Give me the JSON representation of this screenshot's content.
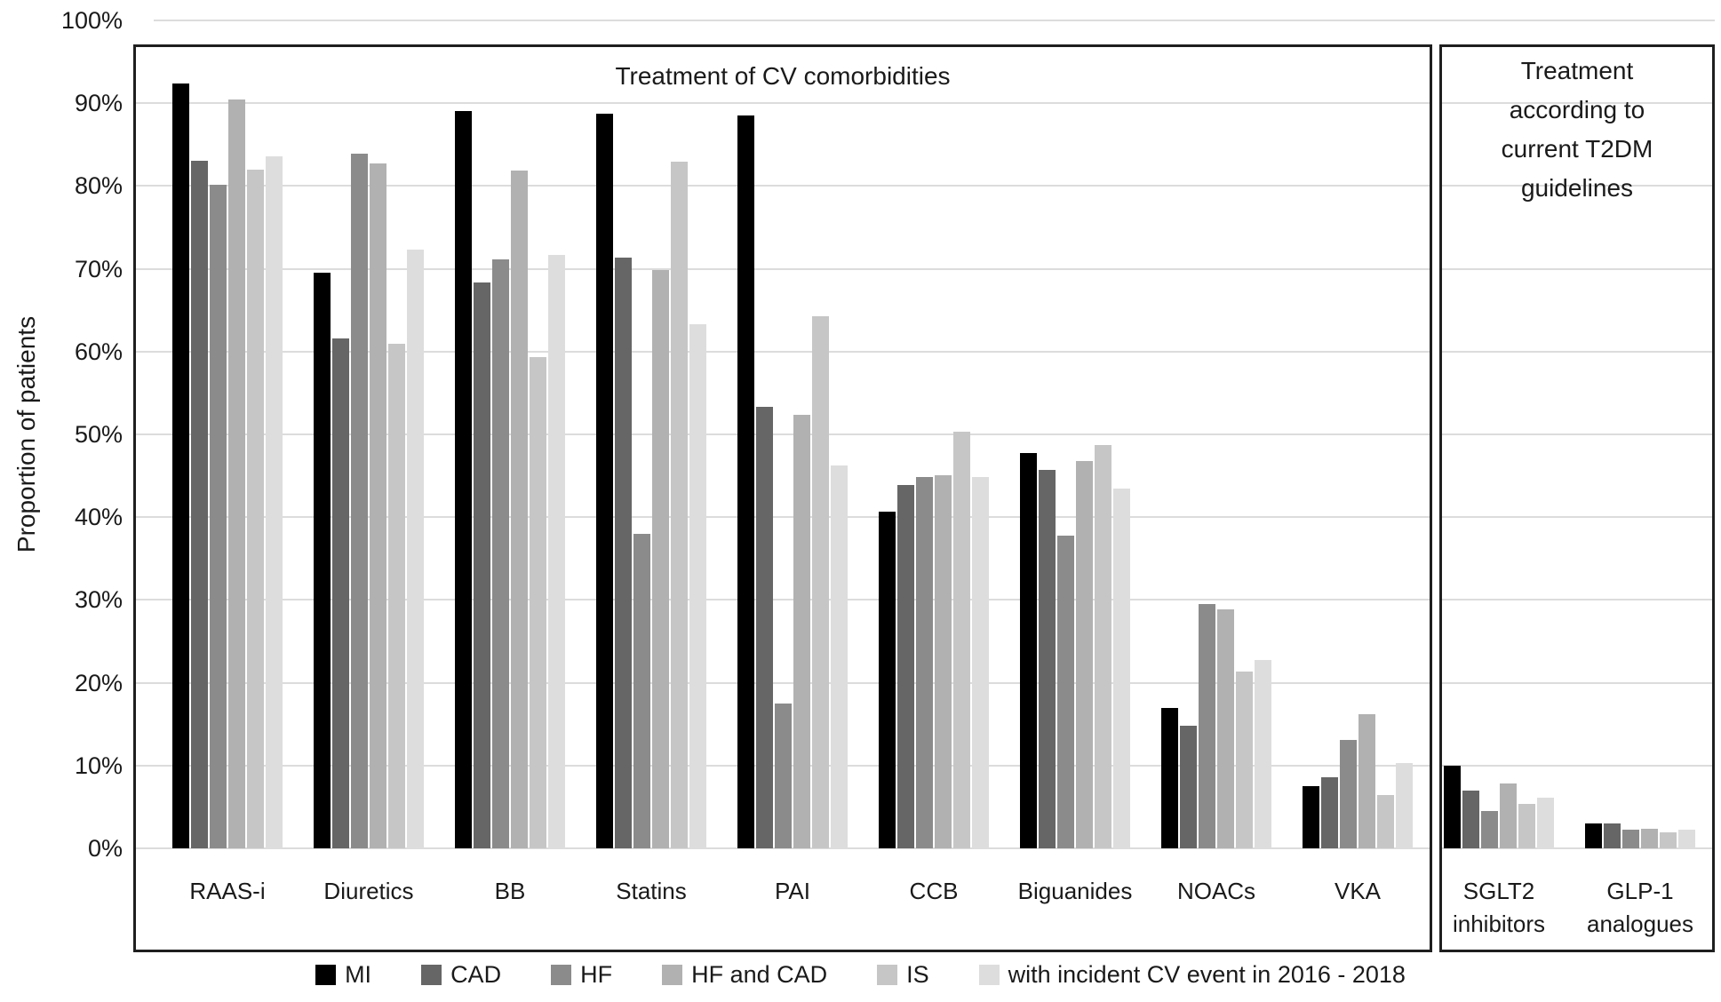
{
  "y_axis": {
    "label": "Proportion of patients",
    "tick_suffix": "%",
    "ticks": [
      100,
      90,
      80,
      70,
      60,
      50,
      40,
      30,
      20,
      10,
      0
    ]
  },
  "main_panel": {
    "title": "Treatment of CV comorbidities"
  },
  "guidelines_panel": {
    "title": "Treatment\naccording to\ncurrent T2DM\nguidelines"
  },
  "chart_data": {
    "type": "bar",
    "title": "Treatment of CV comorbidities",
    "xlabel": "",
    "ylabel": "Proportion of patients",
    "ylim": [
      0,
      100
    ],
    "grid": true,
    "legend_position": "bottom",
    "categories": [
      "RAAS-i",
      "Diuretics",
      "BB",
      "Statins",
      "PAI",
      "CCB",
      "Biguanides",
      "NOACs",
      "VKA",
      "SGLT2 inhibitors",
      "GLP-1 analogues"
    ],
    "category_label_lines": [
      [
        "RAAS-i"
      ],
      [
        "Diuretics"
      ],
      [
        "BB"
      ],
      [
        "Statins"
      ],
      [
        "PAI"
      ],
      [
        "CCB"
      ],
      [
        "Biguanides"
      ],
      [
        "NOACs"
      ],
      [
        "VKA"
      ],
      [
        "SGLT2",
        "inhibitors"
      ],
      [
        "GLP-1",
        "analogues"
      ]
    ],
    "category_panels": [
      "main",
      "main",
      "main",
      "main",
      "main",
      "main",
      "main",
      "main",
      "main",
      "guidelines",
      "guidelines"
    ],
    "series": [
      {
        "name": "MI",
        "color": "#000000",
        "values": [
          92.4,
          69.5,
          89.1,
          88.7,
          88.5,
          40.7,
          47.8,
          16.9,
          7.5,
          10.0,
          3.0
        ]
      },
      {
        "name": "CAD",
        "color": "#666666",
        "values": [
          83.1,
          61.6,
          68.4,
          71.4,
          53.3,
          43.9,
          45.7,
          14.8,
          8.6,
          7.0,
          3.0
        ]
      },
      {
        "name": "HF",
        "color": "#8b8b8b",
        "values": [
          80.2,
          83.9,
          71.1,
          38.0,
          17.5,
          44.9,
          37.8,
          29.5,
          13.1,
          4.5,
          2.2
        ]
      },
      {
        "name": "HF and CAD",
        "color": "#b1b1b1",
        "values": [
          90.5,
          82.7,
          81.9,
          69.9,
          52.4,
          45.1,
          46.8,
          28.9,
          16.2,
          7.8,
          2.4
        ]
      },
      {
        "name": "IS",
        "color": "#c6c6c6",
        "values": [
          82.0,
          60.9,
          59.3,
          82.9,
          64.3,
          50.3,
          48.7,
          21.3,
          6.4,
          5.4,
          1.9
        ]
      },
      {
        "name": "with incident CV event in 2016 - 2018",
        "color": "#dddddd",
        "values": [
          83.6,
          72.3,
          71.7,
          63.3,
          46.2,
          44.9,
          43.5,
          22.7,
          10.3,
          6.1,
          2.3
        ]
      }
    ]
  }
}
